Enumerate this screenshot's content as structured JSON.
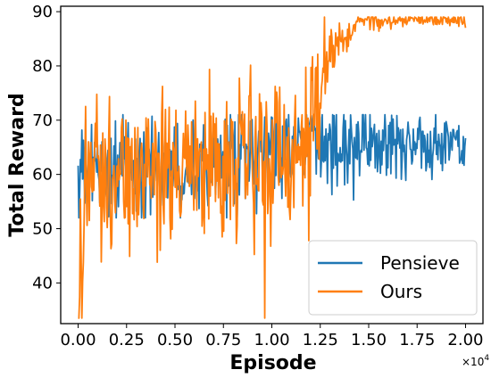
{
  "chart_data": {
    "type": "line",
    "xlabel": "Episode",
    "ylabel": "Total Reward",
    "x_multiplier": "×10",
    "x_multiplier_exp": "4",
    "xlim": [
      -0.09,
      2.09
    ],
    "ylim": [
      32.5,
      91.0
    ],
    "x_ticks": [
      0.0,
      0.25,
      0.5,
      0.75,
      1.0,
      1.25,
      1.5,
      1.75,
      2.0
    ],
    "x_tick_labels": [
      "0.00",
      "0.25",
      "0.50",
      "0.75",
      "1.00",
      "1.25",
      "1.50",
      "1.75",
      "2.00"
    ],
    "y_ticks": [
      40,
      50,
      60,
      70,
      80,
      90
    ],
    "y_tick_labels": [
      "40",
      "50",
      "60",
      "70",
      "80",
      "90"
    ],
    "grid": false,
    "legend_position": "bottom-right",
    "series": [
      {
        "name": "Pensieve",
        "color": "#1f77b4",
        "x_range": [
          0.0,
          2.0
        ],
        "n_points": 520,
        "profile": [
          [
            0.0,
            60
          ],
          [
            0.25,
            61
          ],
          [
            0.5,
            63
          ],
          [
            0.75,
            64
          ],
          [
            1.0,
            65
          ],
          [
            1.25,
            65.5
          ],
          [
            1.5,
            65.5
          ],
          [
            1.75,
            65.5
          ],
          [
            2.0,
            65.5
          ]
        ],
        "noise": [
          [
            0.0,
            4.5
          ],
          [
            1.0,
            4.0
          ],
          [
            2.0,
            3.0
          ]
        ],
        "min": 52,
        "max": 71
      },
      {
        "name": "Ours",
        "color": "#ff7f0e",
        "x_range": [
          0.0,
          2.0
        ],
        "n_points": 520,
        "profile": [
          [
            0.0,
            34
          ],
          [
            0.02,
            48
          ],
          [
            0.05,
            60
          ],
          [
            0.25,
            61
          ],
          [
            0.5,
            62
          ],
          [
            0.75,
            63
          ],
          [
            1.0,
            64
          ],
          [
            1.1,
            65
          ],
          [
            1.2,
            68
          ],
          [
            1.3,
            83
          ],
          [
            1.4,
            86
          ],
          [
            1.44,
            88.5
          ],
          [
            2.0,
            88.5
          ]
        ],
        "noise": [
          [
            0.0,
            6.0
          ],
          [
            1.2,
            7.5
          ],
          [
            1.32,
            3.0
          ],
          [
            1.44,
            0.6
          ],
          [
            2.0,
            0.6
          ]
        ],
        "min": 33.5,
        "max": 89
      }
    ]
  }
}
